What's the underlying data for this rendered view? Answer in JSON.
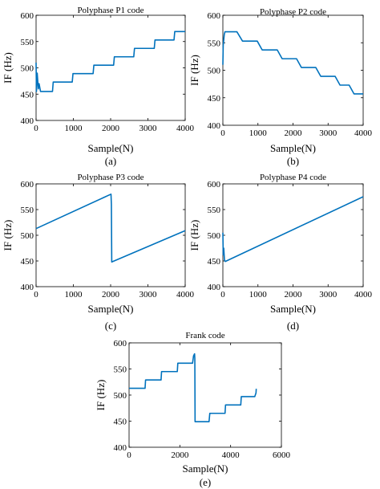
{
  "chart_data": [
    {
      "type": "line",
      "title": "Polyphase P1 code",
      "xlabel": "Sample(N)",
      "ylabel": "IF (Hz)",
      "caption": "(a)",
      "xlim": [
        0,
        4000
      ],
      "ylim": [
        400,
        600
      ],
      "xticks": [
        "0",
        "1000",
        "2000",
        "3000",
        "4000"
      ],
      "yticks": [
        "400",
        "450",
        "500",
        "550",
        "600"
      ],
      "grid": false,
      "series": [
        {
          "color": "#0072BD",
          "x": [
            0,
            10,
            30,
            60,
            80,
            120,
            440,
            460,
            970,
            990,
            1530,
            1550,
            2080,
            2100,
            2620,
            2640,
            3170,
            3190,
            3700,
            3720,
            4000
          ],
          "y": [
            510,
            455,
            490,
            460,
            470,
            455,
            455,
            473,
            473,
            489,
            489,
            505,
            505,
            521,
            521,
            537,
            537,
            553,
            553,
            569,
            569
          ]
        }
      ]
    },
    {
      "type": "line",
      "title": "Polyphase P2 code",
      "xlabel": "Sample(N)",
      "ylabel": "IF (Hz)",
      "caption": "(b)",
      "xlim": [
        0,
        4000
      ],
      "ylim": [
        400,
        600
      ],
      "xticks": [
        "0",
        "1000",
        "2000",
        "3000",
        "4000"
      ],
      "yticks": [
        "400",
        "450",
        "500",
        "550",
        "600"
      ],
      "grid": false,
      "series": [
        {
          "color": "#0072BD",
          "x": [
            0,
            10,
            40,
            60,
            100,
            400,
            560,
            980,
            1120,
            1550,
            1690,
            2100,
            2240,
            2650,
            2790,
            3200,
            3340,
            3600,
            3740,
            4000
          ],
          "y": [
            510,
            545,
            565,
            570,
            570,
            570,
            553,
            553,
            537,
            537,
            521,
            521,
            505,
            505,
            489,
            489,
            473,
            473,
            457,
            457
          ]
        }
      ]
    },
    {
      "type": "line",
      "title": "Polyphase P3 code",
      "xlabel": "Sample(N)",
      "ylabel": "IF (Hz)",
      "caption": "(c)",
      "xlim": [
        0,
        4000
      ],
      "ylim": [
        400,
        600
      ],
      "xticks": [
        "0",
        "1000",
        "2000",
        "3000",
        "4000"
      ],
      "yticks": [
        "400",
        "450",
        "500",
        "550",
        "600"
      ],
      "grid": false,
      "series": [
        {
          "color": "#0072BD",
          "x": [
            0,
            2010,
            2020,
            2030,
            4000
          ],
          "y": [
            513,
            580,
            560,
            448,
            509
          ]
        }
      ]
    },
    {
      "type": "line",
      "title": "Polyphase P4 code",
      "xlabel": "Sample(N)",
      "ylabel": "IF (Hz)",
      "caption": "(d)",
      "xlim": [
        0,
        4000
      ],
      "ylim": [
        400,
        600
      ],
      "xticks": [
        "0",
        "1000",
        "2000",
        "3000",
        "4000"
      ],
      "yticks": [
        "400",
        "450",
        "500",
        "550",
        "600"
      ],
      "grid": false,
      "series": [
        {
          "color": "#0072BD",
          "x": [
            0,
            10,
            25,
            45,
            70,
            4000
          ],
          "y": [
            505,
            462,
            475,
            452,
            449,
            575
          ]
        }
      ]
    },
    {
      "type": "line",
      "title": "Frank code",
      "xlabel": "Sample(N)",
      "ylabel": "IF (Hz)",
      "caption": "(e)",
      "xlim": [
        0,
        6000
      ],
      "ylim": [
        400,
        600
      ],
      "xticks": [
        "0",
        "2000",
        "4000",
        "6000"
      ],
      "yticks": [
        "400",
        "450",
        "500",
        "550",
        "600"
      ],
      "grid": false,
      "series": [
        {
          "color": "#0072BD",
          "x": [
            0,
            630,
            650,
            1260,
            1280,
            1900,
            1920,
            2500,
            2540,
            2580,
            2590,
            2600,
            3150,
            3180,
            3780,
            3800,
            4400,
            4420,
            4950,
            5000,
            5010
          ],
          "y": [
            513,
            513,
            529,
            529,
            545,
            545,
            561,
            561,
            575,
            579,
            570,
            449,
            449,
            465,
            465,
            481,
            481,
            497,
            497,
            504,
            512
          ]
        }
      ]
    }
  ]
}
